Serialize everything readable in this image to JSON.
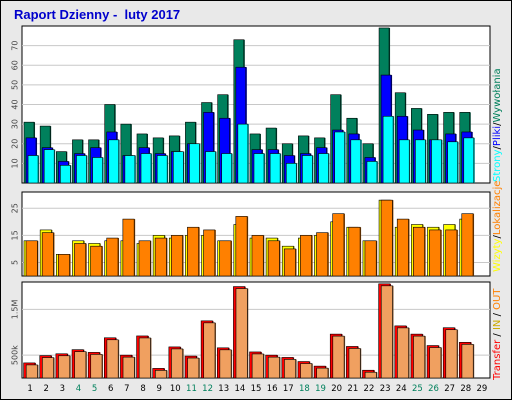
{
  "title": "Raport Dzienny -  luty 2017",
  "colors": {
    "hits": "#00805c",
    "files": "#0000ff",
    "pages": "#00ffff",
    "visits": "#ffff00",
    "sites": "#ff8000",
    "kbytes": "#ff0000",
    "title": "#0000cc",
    "panel_bg": "#e9e9e9",
    "plot_bg": "#ffffff"
  },
  "chart_data": {
    "type": "bar",
    "categories": [
      "1",
      "2",
      "3",
      "4",
      "5",
      "6",
      "7",
      "8",
      "9",
      "10",
      "11",
      "12",
      "13",
      "14",
      "15",
      "16",
      "17",
      "18",
      "19",
      "20",
      "21",
      "22",
      "23",
      "24",
      "25",
      "26",
      "27",
      "28",
      "29"
    ],
    "weekend_days": [
      "4",
      "5",
      "11",
      "12",
      "18",
      "19",
      "25",
      "26"
    ],
    "panels": [
      {
        "name": "hits-files-pages",
        "yticks": [
          "10",
          "20",
          "30",
          "40",
          "50",
          "60",
          "70"
        ],
        "ylim": [
          0,
          80
        ],
        "legend": [
          "Wywołania",
          "Pliki",
          "Strony"
        ],
        "series": [
          {
            "name": "Wywołania",
            "color": "#00805c",
            "values": [
              31,
              29,
              16,
              22,
              22,
              40,
              30,
              25,
              23,
              24,
              31,
              41,
              45,
              73,
              25,
              28,
              20,
              24,
              23,
              45,
              33,
              20,
              79,
              46,
              38,
              35,
              36,
              36,
              null
            ]
          },
          {
            "name": "Pliki",
            "color": "#0000ff",
            "values": [
              23,
              18,
              11,
              15,
              18,
              26,
              14,
              18,
              15,
              16,
              20,
              36,
              33,
              59,
              17,
              17,
              14,
              15,
              18,
              27,
              25,
              13,
              55,
              34,
              27,
              22,
              25,
              26,
              null
            ]
          },
          {
            "name": "Strony",
            "color": "#00ffff",
            "values": [
              14,
              17,
              9,
              14,
              13,
              22,
              14,
              15,
              14,
              16,
              20,
              16,
              15,
              30,
              15,
              15,
              10,
              14,
              15,
              26,
              22,
              11,
              34,
              22,
              22,
              22,
              21,
              23,
              null
            ]
          }
        ]
      },
      {
        "name": "visits-sites",
        "yticks": [
          "5",
          "15",
          "25"
        ],
        "ylim": [
          0,
          31
        ],
        "legend": [
          "Wizyty",
          "Lokalizacje"
        ],
        "series": [
          {
            "name": "Wizyty",
            "color": "#ffff00",
            "values": [
              13,
              17,
              8,
              13,
              12,
              13,
              13,
              12,
              15,
              14,
              15,
              15,
              13,
              19,
              14,
              14,
              11,
              14,
              15,
              20,
              18,
              13,
              28,
              18,
              19,
              18,
              19,
              21,
              null
            ]
          },
          {
            "name": "Lokalizacje",
            "color": "#ff8000",
            "values": [
              13,
              16,
              8,
              12,
              11,
              14,
              21,
              13,
              14,
              15,
              18,
              17,
              13,
              22,
              15,
              13,
              10,
              15,
              16,
              23,
              18,
              13,
              28,
              21,
              18,
              17,
              17,
              23,
              null
            ]
          }
        ]
      },
      {
        "name": "transfer",
        "yticks": [
          "500k",
          "1.5M"
        ],
        "ylim": [
          0,
          2100000
        ],
        "legend": [
          "Transfer",
          "IN",
          "OUT"
        ],
        "series": [
          {
            "name": "Transfer",
            "color": "#ff0000",
            "values": [
              330000,
              490000,
              530000,
              620000,
              560000,
              880000,
              500000,
              920000,
              210000,
              680000,
              480000,
              1250000,
              660000,
              2000000,
              570000,
              500000,
              450000,
              360000,
              260000,
              960000,
              690000,
              170000,
              2060000,
              1140000,
              960000,
              710000,
              1100000,
              780000,
              null
            ]
          }
        ]
      }
    ]
  }
}
